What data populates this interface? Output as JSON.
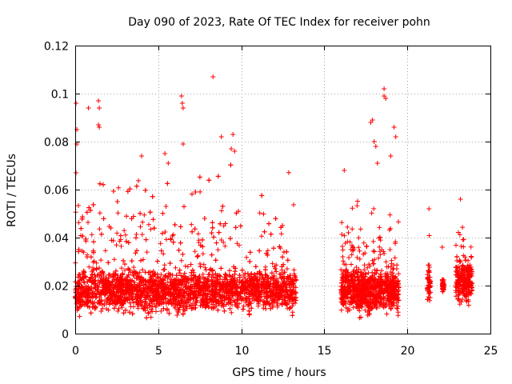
{
  "chart_data": {
    "type": "scatter",
    "title": "Day 090 of 2023, Rate Of TEC Index for receiver pohn",
    "xlabel": "GPS time / hours",
    "ylabel": "ROTI / TECUs",
    "xlim": [
      0,
      25
    ],
    "ylim": [
      0,
      0.12
    ],
    "xticks": [
      0,
      5,
      10,
      15,
      20,
      25
    ],
    "yticks": [
      0,
      0.02,
      0.04,
      0.06,
      0.08,
      0.1,
      0.12
    ],
    "xtick_labels": [
      "0",
      "5",
      "10",
      "15",
      "20",
      "25"
    ],
    "ytick_labels": [
      "0",
      "0.02",
      "0.04",
      "0.06",
      "0.08",
      "0.1",
      "0.12"
    ],
    "grid": true,
    "marker": "+",
    "color": "#ff0000",
    "series": [
      {
        "name": "ROTI",
        "segments": [
          {
            "t_start": 0.0,
            "t_end": 13.3,
            "base": 0.018,
            "spread": 0.012,
            "burst": 0.05
          },
          {
            "t_start": 16.0,
            "t_end": 19.5,
            "base": 0.018,
            "spread": 0.012,
            "burst": 0.04
          },
          {
            "t_start": 21.2,
            "t_end": 21.4,
            "base": 0.02,
            "spread": 0.01,
            "burst": 0.02
          },
          {
            "t_start": 22.1,
            "t_end": 22.2,
            "base": 0.02,
            "spread": 0.004,
            "burst": 0.01
          },
          {
            "t_start": 22.9,
            "t_end": 23.9,
            "base": 0.022,
            "spread": 0.012,
            "burst": 0.025
          }
        ],
        "peaks": [
          {
            "x": 0.05,
            "y": 0.096
          },
          {
            "x": 0.1,
            "y": 0.085
          },
          {
            "x": 0.1,
            "y": 0.079
          },
          {
            "x": 0.05,
            "y": 0.067
          },
          {
            "x": 0.8,
            "y": 0.094
          },
          {
            "x": 1.4,
            "y": 0.097
          },
          {
            "x": 1.45,
            "y": 0.094
          },
          {
            "x": 1.4,
            "y": 0.087
          },
          {
            "x": 1.45,
            "y": 0.086
          },
          {
            "x": 4.0,
            "y": 0.074
          },
          {
            "x": 5.4,
            "y": 0.075
          },
          {
            "x": 5.6,
            "y": 0.071
          },
          {
            "x": 6.4,
            "y": 0.099
          },
          {
            "x": 6.45,
            "y": 0.096
          },
          {
            "x": 6.5,
            "y": 0.094
          },
          {
            "x": 6.5,
            "y": 0.079
          },
          {
            "x": 8.3,
            "y": 0.107
          },
          {
            "x": 8.8,
            "y": 0.082
          },
          {
            "x": 9.5,
            "y": 0.083
          },
          {
            "x": 9.4,
            "y": 0.077
          },
          {
            "x": 9.6,
            "y": 0.076
          },
          {
            "x": 16.2,
            "y": 0.068
          },
          {
            "x": 17.8,
            "y": 0.088
          },
          {
            "x": 17.9,
            "y": 0.089
          },
          {
            "x": 18.0,
            "y": 0.08
          },
          {
            "x": 18.1,
            "y": 0.078
          },
          {
            "x": 18.2,
            "y": 0.071
          },
          {
            "x": 18.6,
            "y": 0.102
          },
          {
            "x": 18.6,
            "y": 0.099
          },
          {
            "x": 18.7,
            "y": 0.098
          },
          {
            "x": 19.2,
            "y": 0.086
          },
          {
            "x": 19.3,
            "y": 0.082
          },
          {
            "x": 19.0,
            "y": 0.074
          },
          {
            "x": 21.3,
            "y": 0.052
          },
          {
            "x": 22.1,
            "y": 0.036
          },
          {
            "x": 23.2,
            "y": 0.056
          }
        ]
      }
    ]
  }
}
